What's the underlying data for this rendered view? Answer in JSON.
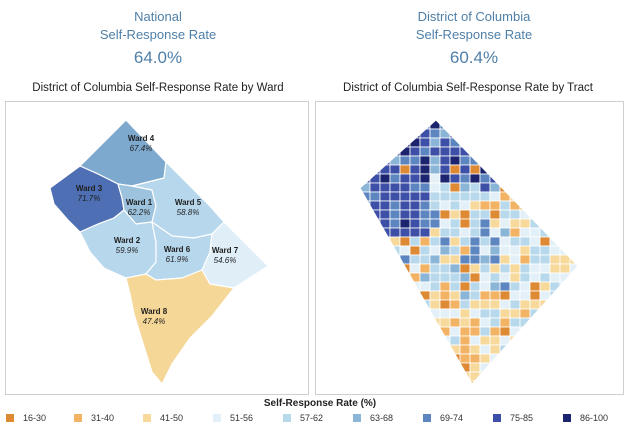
{
  "national": {
    "label_line1": "National",
    "label_line2": "Self-Response Rate",
    "value": "64.0%"
  },
  "dc": {
    "label_line1": "District of Columbia",
    "label_line2": "Self-Response Rate",
    "value": "60.4%"
  },
  "ward_map": {
    "title": "District of Columbia Self-Response Rate by Ward",
    "wards": [
      {
        "name": "Ward 4",
        "rate": "67.4%",
        "color": "#7ea9cf"
      },
      {
        "name": "Ward 3",
        "rate": "71.7%",
        "color": "#4e6fb4"
      },
      {
        "name": "Ward 1",
        "rate": "62.2%",
        "color": "#9cc2dd"
      },
      {
        "name": "Ward 5",
        "rate": "58.8%",
        "color": "#b7d7ec"
      },
      {
        "name": "Ward 2",
        "rate": "59.9%",
        "color": "#b7d7ec"
      },
      {
        "name": "Ward 6",
        "rate": "61.9%",
        "color": "#b7d7ec"
      },
      {
        "name": "Ward 7",
        "rate": "54.6%",
        "color": "#dfeef7"
      },
      {
        "name": "Ward 8",
        "rate": "47.4%",
        "color": "#f5d797"
      }
    ]
  },
  "tract_map": {
    "title": "District of Columbia Self-Response Rate by Tract"
  },
  "legend": {
    "title": "Self-Response Rate (%)",
    "items": [
      {
        "label": "16-30",
        "color": "#de8a34"
      },
      {
        "label": "31-40",
        "color": "#f2b464"
      },
      {
        "label": "41-50",
        "color": "#f7d99c"
      },
      {
        "label": "51-56",
        "color": "#e3f0f8"
      },
      {
        "label": "57-62",
        "color": "#b8d8ec"
      },
      {
        "label": "63-68",
        "color": "#8bb5d6"
      },
      {
        "label": "69-74",
        "color": "#5d86c0"
      },
      {
        "label": "75-85",
        "color": "#3d4fa6"
      },
      {
        "label": "86-100",
        "color": "#1c2470"
      }
    ]
  }
}
